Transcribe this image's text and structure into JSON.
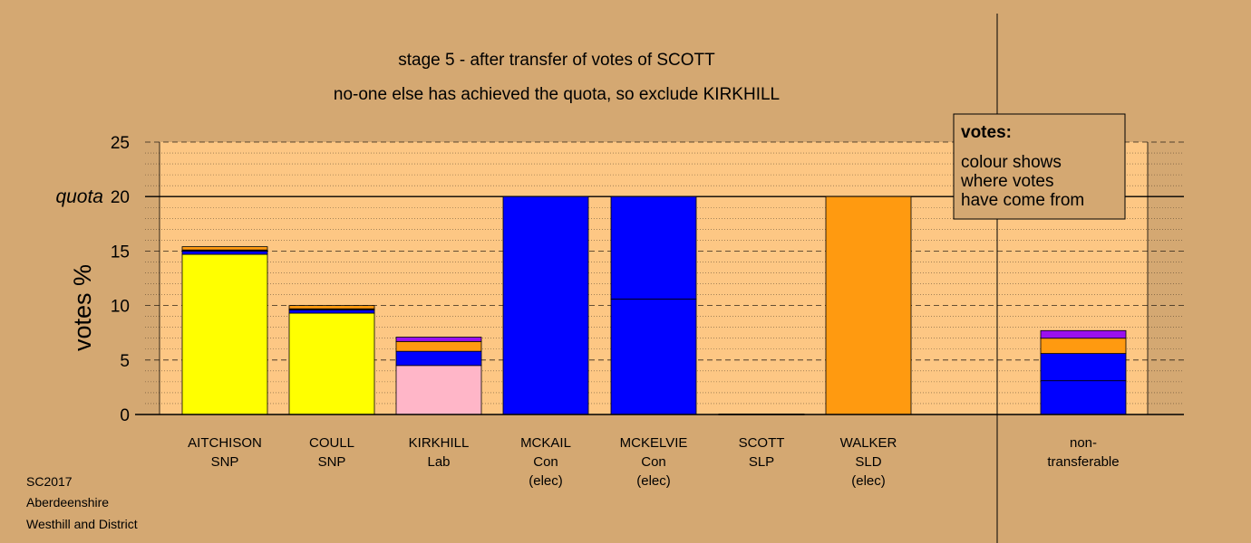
{
  "titles": {
    "line1": "stage 5 - after transfer of votes of SCOTT",
    "line2": "no-one else has achieved the quota, so exclude KIRKHILL"
  },
  "footer": [
    "SC2017",
    "Aberdeenshire",
    "Westhill and District"
  ],
  "legend": {
    "heading": "votes:",
    "lines": [
      "colour shows",
      "where votes",
      "have come from"
    ]
  },
  "colors": {
    "background": "#d4a872",
    "plot_area": "#fdc784",
    "SNP": "#ffff00",
    "Con": "#0000ff",
    "Lab": "#ffb6c8",
    "SLD": "#ff9a10",
    "SLP": "#000000",
    "extra_orange": "#ff9a10",
    "purple": "#9a10f0",
    "dark": "#000000"
  },
  "chart_data": {
    "type": "bar",
    "stacked": true,
    "ylabel": "votes %",
    "ylim": [
      0,
      25
    ],
    "yticks": [
      "0",
      "5",
      "10",
      "15",
      "20",
      "25"
    ],
    "quota": {
      "label": "quota",
      "value": 20
    },
    "grid": "dashed major every 5, dotted minor every 1",
    "legend_position": "top-right",
    "categories": [
      {
        "lines": [
          "AITCHISON",
          "SNP"
        ]
      },
      {
        "lines": [
          "COULL",
          "SNP"
        ]
      },
      {
        "lines": [
          "KIRKHILL",
          "Lab"
        ]
      },
      {
        "lines": [
          "MCKAIL",
          "Con",
          "(elec)"
        ]
      },
      {
        "lines": [
          "MCKELVIE",
          "Con",
          "(elec)"
        ]
      },
      {
        "lines": [
          "SCOTT",
          "SLP"
        ]
      },
      {
        "lines": [
          "WALKER",
          "SLD",
          "(elec)"
        ]
      },
      {
        "lines": [
          "non-",
          "transferable"
        ]
      }
    ],
    "bars": [
      {
        "segments": [
          {
            "value": 14.7,
            "color": "SNP"
          },
          {
            "value": 0.3,
            "color": "Con"
          },
          {
            "value": 0.1,
            "color": "dark"
          },
          {
            "value": 0.3,
            "color": "extra_orange"
          }
        ]
      },
      {
        "segments": [
          {
            "value": 9.3,
            "color": "SNP"
          },
          {
            "value": 0.3,
            "color": "Con"
          },
          {
            "value": 0.1,
            "color": "dark"
          },
          {
            "value": 0.3,
            "color": "extra_orange"
          }
        ]
      },
      {
        "segments": [
          {
            "value": 4.5,
            "color": "Lab"
          },
          {
            "value": 1.3,
            "color": "Con"
          },
          {
            "value": 0.9,
            "color": "extra_orange"
          },
          {
            "value": 0.4,
            "color": "purple"
          }
        ]
      },
      {
        "segments": [
          {
            "value": 20,
            "color": "Con"
          }
        ]
      },
      {
        "segments": [
          {
            "value": 10.6,
            "color": "Con"
          },
          {
            "value": 9.4,
            "color": "Con"
          }
        ]
      },
      {
        "segments": [
          {
            "value": 0.05,
            "color": "SLP"
          }
        ]
      },
      {
        "segments": [
          {
            "value": 20,
            "color": "SLD"
          }
        ]
      },
      {
        "segments": [
          {
            "value": 3.1,
            "color": "Con"
          },
          {
            "value": 2.5,
            "color": "Con"
          },
          {
            "value": 1.4,
            "color": "extra_orange"
          },
          {
            "value": 0.7,
            "color": "purple"
          }
        ]
      }
    ]
  }
}
